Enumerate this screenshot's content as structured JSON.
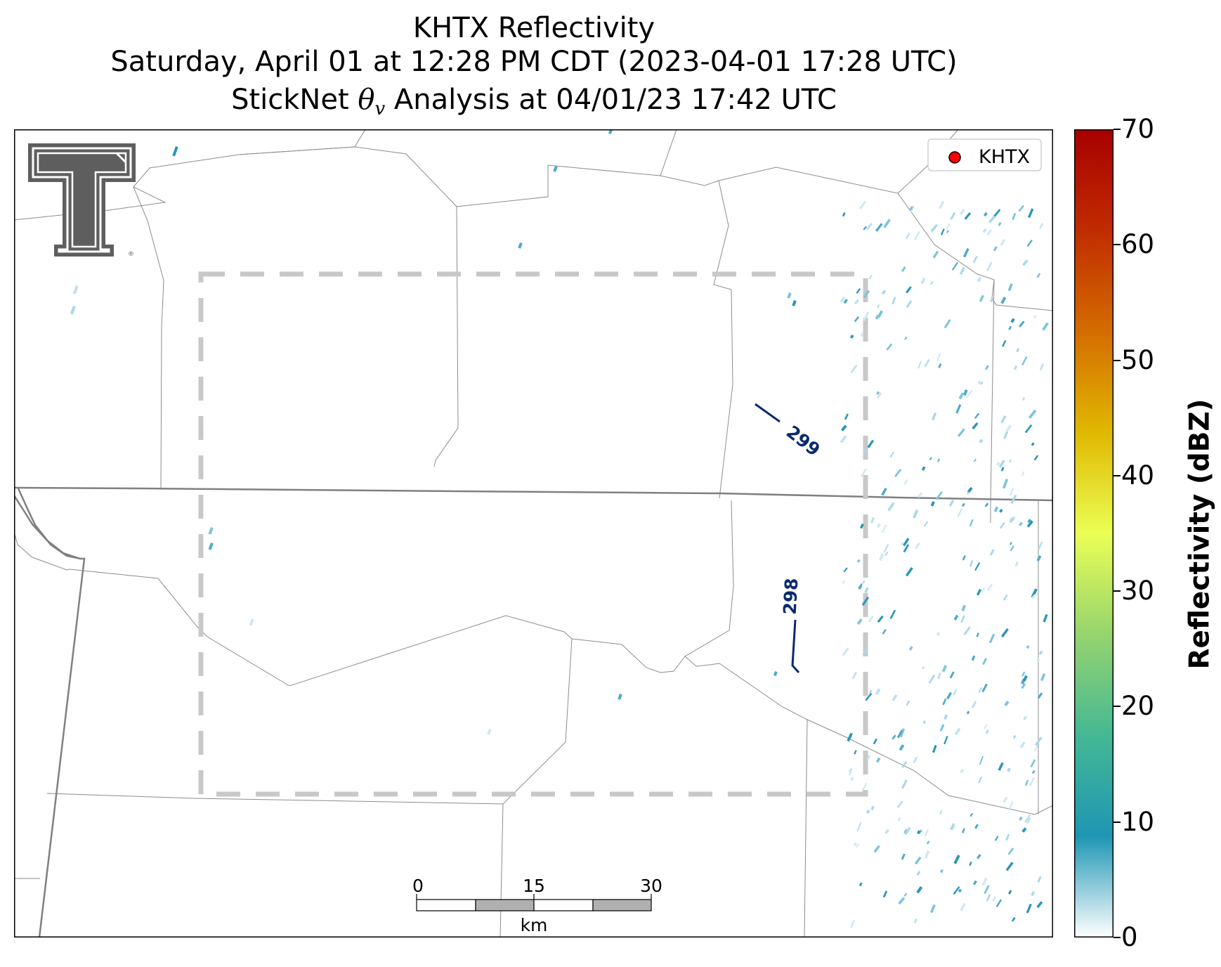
{
  "title": {
    "line1": "KHTX Reflectivity",
    "line2": "Saturday, April 01 at 12:28 PM CDT (2023-04-01 17:28 UTC)",
    "line3_prefix": "StickNet ",
    "line3_symbol": "θ",
    "line3_subscript": "v",
    "line3_suffix": " Analysis at 04/01/23 17:42 UTC"
  },
  "legend": {
    "label": "KHTX",
    "marker_color": "#ff0000"
  },
  "contours": [
    {
      "label": "299"
    },
    {
      "label": "298"
    }
  ],
  "contour_color": "#0a2a6e",
  "scalebar": {
    "ticks": [
      "0",
      "15",
      "30"
    ],
    "unit": "km"
  },
  "colorbar": {
    "label": "Reflectivity (dBZ)",
    "ticks": [
      "0",
      "10",
      "20",
      "30",
      "40",
      "50",
      "60",
      "70"
    ],
    "min": 0,
    "max": 70,
    "colors": [
      "#ffffff",
      "#1e96b4",
      "#44b894",
      "#96d46e",
      "#eaff55",
      "#e0b800",
      "#d46c00",
      "#c02c00",
      "#a80000"
    ]
  },
  "logo": {
    "name": "Texas Tech Double T",
    "color": "#5a5a5a"
  }
}
